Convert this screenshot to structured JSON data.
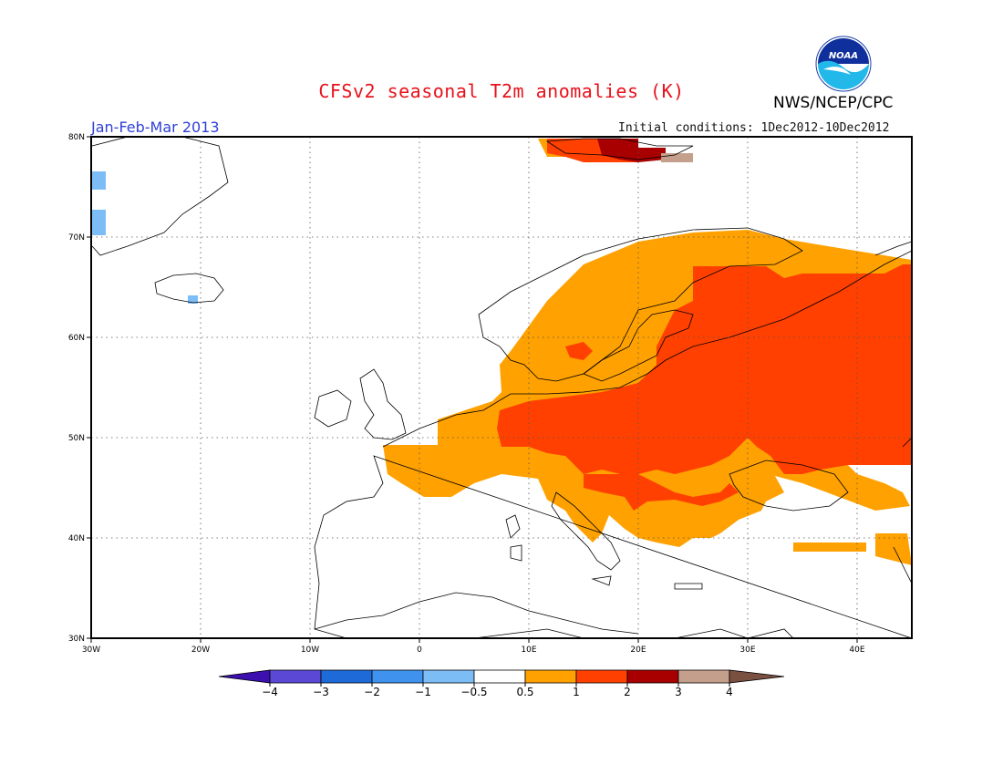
{
  "title": "CFSv2 seasonal T2m anomalies (K)",
  "agency": "NWS/NCEP/CPC",
  "logo_text": "NOAA",
  "season": "Jan-Feb-Mar 2013",
  "initial_conditions": "Initial conditions: 1Dec2012-10Dec2012",
  "map": {
    "lon_range": [
      -30,
      45
    ],
    "lat_range": [
      30,
      80
    ],
    "lon_ticks": [
      {
        "value": -30,
        "label": "30W"
      },
      {
        "value": -20,
        "label": "20W"
      },
      {
        "value": -10,
        "label": "10W"
      },
      {
        "value": 0,
        "label": "0"
      },
      {
        "value": 10,
        "label": "10E"
      },
      {
        "value": 20,
        "label": "20E"
      },
      {
        "value": 30,
        "label": "30E"
      },
      {
        "value": 40,
        "label": "40E"
      }
    ],
    "lat_ticks": [
      {
        "value": 30,
        "label": "30N"
      },
      {
        "value": 40,
        "label": "40N"
      },
      {
        "value": 50,
        "label": "50N"
      },
      {
        "value": 60,
        "label": "60N"
      },
      {
        "value": 70,
        "label": "70N"
      },
      {
        "value": 80,
        "label": "80N"
      }
    ],
    "grid": true
  },
  "colorbar": {
    "labels": [
      "-4",
      "-3",
      "-2",
      "-1",
      "-0.5",
      "0.5",
      "1",
      "2",
      "3",
      "4"
    ],
    "colors": [
      "#3c10ae",
      "#5b49d6",
      "#1e6ad9",
      "#3f93ee",
      "#7dbdf5",
      "#ffffff",
      "#ffa100",
      "#ff4000",
      "#a80000",
      "#c4a08c",
      "#7a5040"
    ]
  },
  "anomaly_colors": {
    "0.5-1": "#ffa100",
    "1-2": "#ff4000",
    "2-3": "#a80000",
    "3-4": "#c4a08c",
    "-1--0.5": "#7dbdf5"
  }
}
